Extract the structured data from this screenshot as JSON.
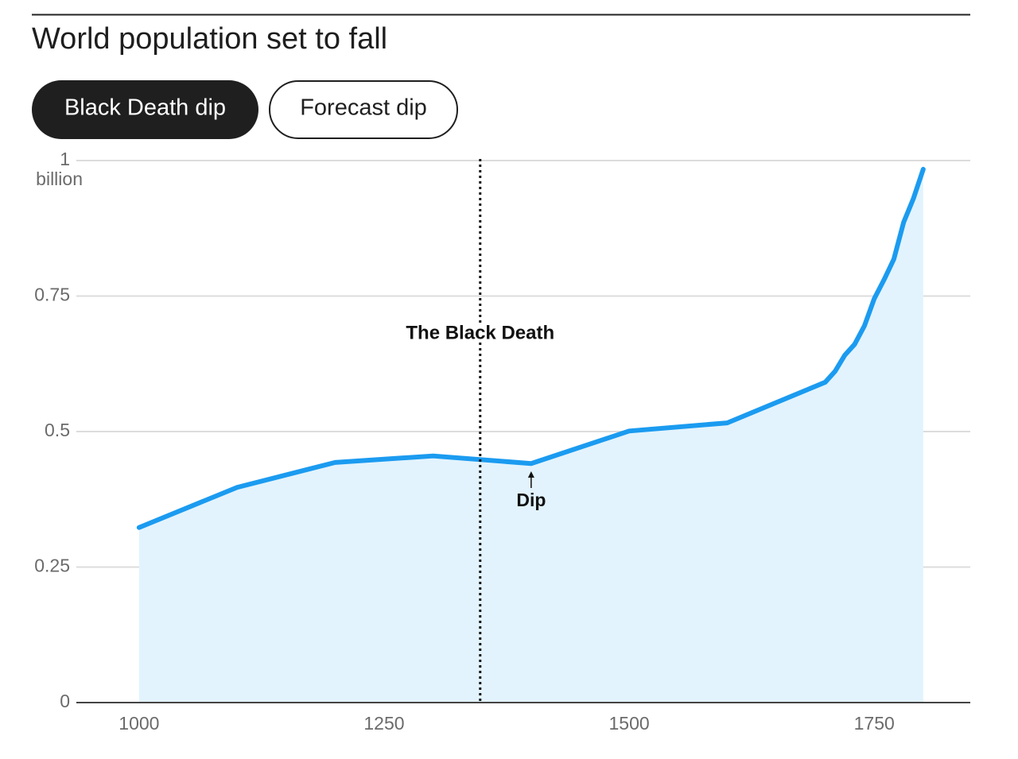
{
  "header": {
    "title": "World population set to fall"
  },
  "buttons": [
    "Black Death dip",
    "Forecast dip"
  ],
  "chart_data": {
    "type": "area",
    "x": [
      1000,
      1100,
      1200,
      1300,
      1400,
      1500,
      1600,
      1700,
      1710,
      1720,
      1730,
      1740,
      1750,
      1760,
      1770,
      1780,
      1790,
      1800
    ],
    "values": [
      0.323,
      0.397,
      0.443,
      0.455,
      0.441,
      0.501,
      0.516,
      0.591,
      0.611,
      0.641,
      0.661,
      0.695,
      0.745,
      0.78,
      0.818,
      0.886,
      0.93,
      0.984
    ],
    "color": "#1b9bf0",
    "fill": "#e2f3fd",
    "xlim": [
      936,
      1848
    ],
    "xticks": [
      1000,
      1250,
      1500,
      1750
    ],
    "ylim": [
      0,
      1
    ],
    "yticks": [
      0,
      0.25,
      0.5,
      0.75,
      1
    ],
    "y_unit": "billion",
    "grid": true,
    "annotations": [
      {
        "text": "The Black Death",
        "x": 1348
      },
      {
        "text": "Dip",
        "x": 1400
      }
    ]
  }
}
